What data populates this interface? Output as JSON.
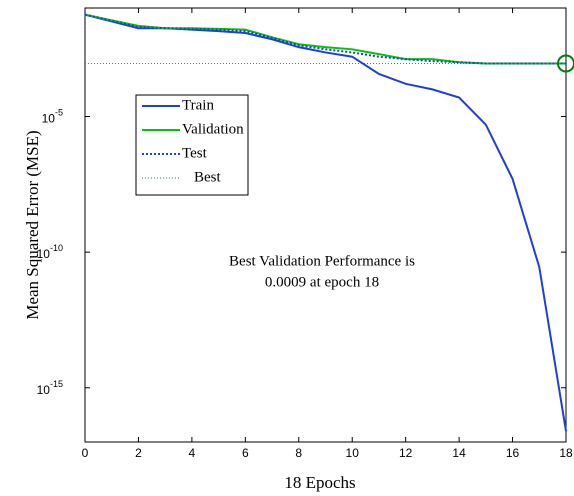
{
  "chart_data": {
    "type": "line",
    "log_y": true,
    "xlabel": "18 Epochs",
    "ylabel": "Mean Squared Error  (MSE)",
    "annotation": [
      "Best Validation Performance is",
      "0.0009 at epoch 18"
    ],
    "x": [
      0,
      1,
      2,
      3,
      4,
      5,
      6,
      7,
      8,
      9,
      10,
      11,
      12,
      13,
      14,
      15,
      16,
      17,
      18
    ],
    "series": [
      {
        "name": "Train",
        "color": "#1f3fd6",
        "dash": "solid",
        "values": [
          0.057,
          0.032,
          0.018,
          0.018,
          0.016,
          0.014,
          0.012,
          0.007,
          0.0036,
          0.0023,
          0.0016,
          0.00037,
          0.00016,
          0.0001,
          5e-05,
          5e-06,
          5e-08,
          2.8e-11,
          2.5e-17
        ]
      },
      {
        "name": "Validation",
        "color": "#00c800",
        "dash": "solid",
        "values": [
          0.057,
          0.035,
          0.022,
          0.018,
          0.018,
          0.017,
          0.016,
          0.0083,
          0.0046,
          0.0036,
          0.003,
          0.002,
          0.0013,
          0.0013,
          0.001,
          0.0009,
          0.0009,
          0.0009,
          0.0009
        ]
      },
      {
        "name": "Test",
        "color": "#1f3fd6",
        "dash": "dotted",
        "values": [
          0.057,
          0.034,
          0.02,
          0.018,
          0.017,
          0.016,
          0.014,
          0.008,
          0.0042,
          0.003,
          0.0023,
          0.0016,
          0.0013,
          0.0011,
          0.001,
          0.0009,
          0.0009,
          0.0009,
          0.0009
        ]
      }
    ],
    "best": {
      "name": "Best",
      "color": "#2e8b57",
      "x": 18,
      "value": 0.0009
    },
    "xlim": [
      0,
      18
    ],
    "xticks": [
      0,
      2,
      4,
      6,
      8,
      10,
      12,
      14,
      16,
      18
    ],
    "ylim": [
      1e-17,
      0.1
    ],
    "yticks": [
      {
        "value": 1e-05,
        "label": "10",
        "exponent": "-5"
      },
      {
        "value": 1e-10,
        "label": "10",
        "exponent": "-10"
      },
      {
        "value": 1e-15,
        "label": "10",
        "exponent": "-15"
      }
    ]
  }
}
